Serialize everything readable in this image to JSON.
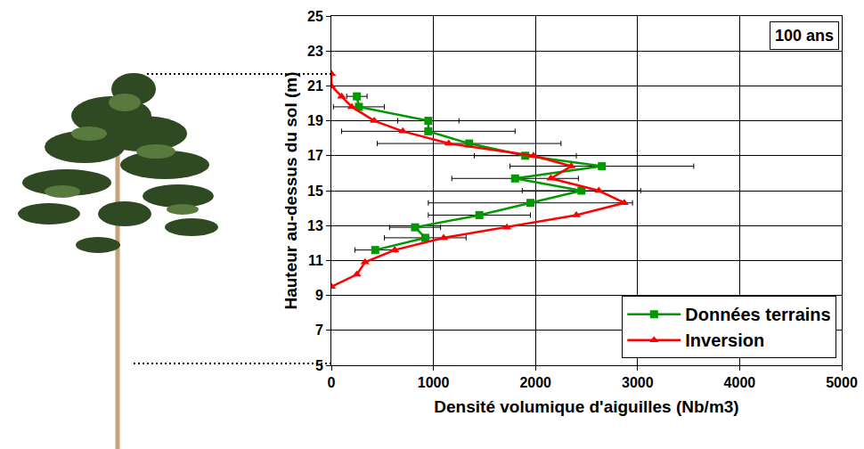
{
  "chart_data": {
    "type": "line",
    "annotation": "100 ans",
    "xlabel": "Densité volumique d'aiguilles (Nb/m3)",
    "ylabel": "Hauteur au-dessus du sol (m)",
    "xlim": [
      0,
      5000
    ],
    "xticks": [
      0,
      1000,
      2000,
      3000,
      4000,
      5000
    ],
    "ylim": [
      5,
      25
    ],
    "yticks": [
      5,
      7,
      9,
      11,
      13,
      15,
      17,
      19,
      21,
      23,
      25
    ],
    "grid": true,
    "legend": "lower right",
    "series": [
      {
        "name": "Données terrains",
        "color": "#009900",
        "marker": "square",
        "x": [
          250,
          270,
          950,
          950,
          1350,
          1900,
          2650,
          1800,
          2450,
          1950,
          1450,
          820,
          920,
          430
        ],
        "y": [
          20.4,
          19.8,
          19.0,
          18.4,
          17.7,
          17.0,
          16.4,
          15.7,
          15.0,
          14.3,
          13.6,
          12.9,
          12.3,
          11.6
        ],
        "errors": [
          100,
          250,
          300,
          850,
          900,
          500,
          900,
          620,
          580,
          1000,
          500,
          250,
          400,
          200
        ]
      },
      {
        "name": "Inversion",
        "color": "#ff0000",
        "marker": "triangle",
        "x": [
          0,
          0,
          100,
          200,
          420,
          700,
          1150,
          1980,
          2350,
          2150,
          2620,
          2870,
          2400,
          1720,
          1100,
          620,
          330,
          250,
          0
        ],
        "y": [
          21.7,
          21.0,
          20.4,
          19.8,
          19.0,
          18.4,
          17.7,
          17.0,
          16.4,
          15.7,
          15.0,
          14.3,
          13.6,
          12.9,
          12.3,
          11.6,
          10.9,
          10.2,
          9.5
        ]
      }
    ]
  }
}
